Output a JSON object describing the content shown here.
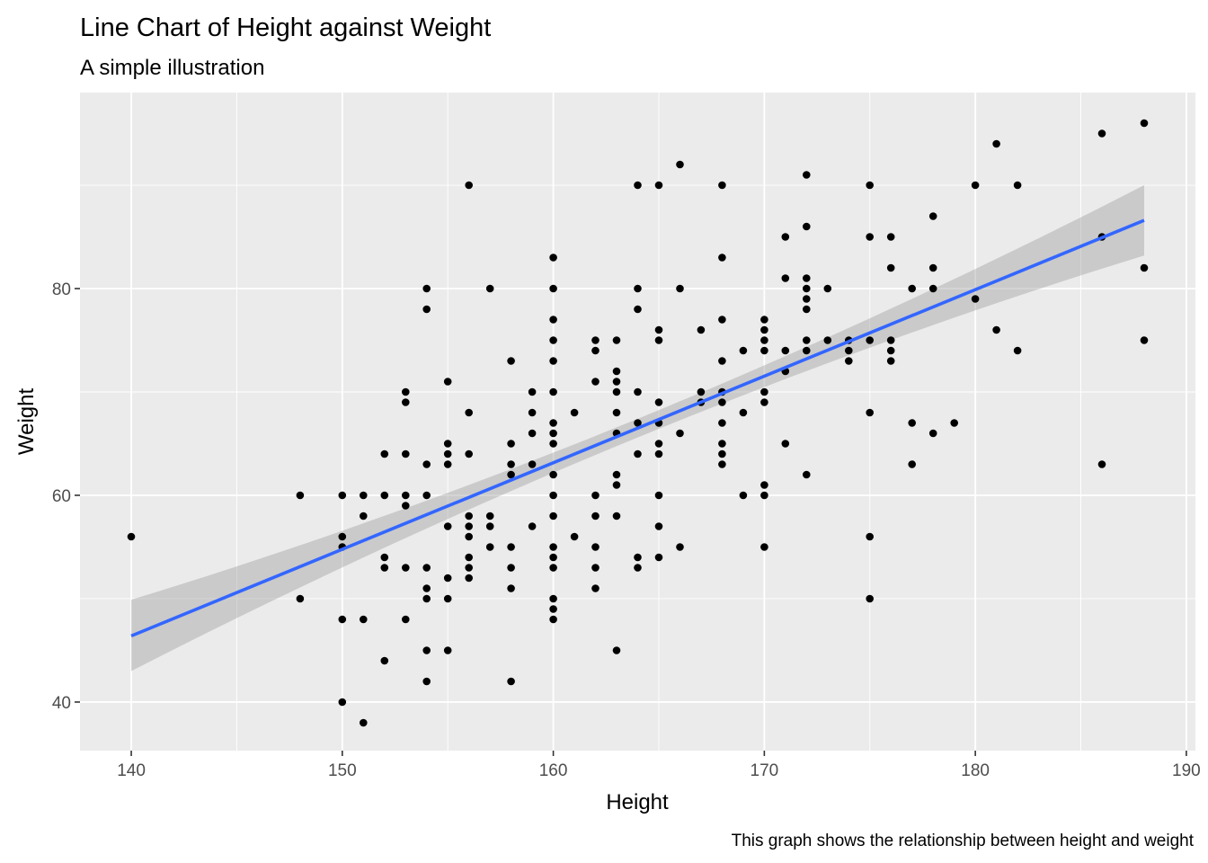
{
  "chart_data": {
    "type": "scatter",
    "title": "Line Chart of Height against Weight",
    "subtitle": "A simple illustration",
    "caption": "This graph shows the relationship between height and weight",
    "xlabel": "Height",
    "ylabel": "Weight",
    "xlim": [
      137.57,
      190.43
    ],
    "ylim": [
      35.3,
      98.96
    ],
    "x_ticks": [
      140,
      150,
      160,
      170,
      180,
      190
    ],
    "y_ticks": [
      40,
      60,
      80
    ],
    "x_tick_labels": [
      "140",
      "150",
      "160",
      "170",
      "180",
      "190"
    ],
    "y_tick_labels": [
      "40",
      "60",
      "80"
    ],
    "grid": true,
    "legend": "none",
    "points": [
      [
        140,
        56
      ],
      [
        148,
        60
      ],
      [
        148,
        50
      ],
      [
        150,
        60
      ],
      [
        150,
        56
      ],
      [
        150,
        55
      ],
      [
        150,
        48
      ],
      [
        150,
        40
      ],
      [
        151,
        60
      ],
      [
        151,
        58
      ],
      [
        151,
        48
      ],
      [
        151,
        38
      ],
      [
        152,
        64
      ],
      [
        152,
        60
      ],
      [
        152,
        54
      ],
      [
        152,
        53
      ],
      [
        152,
        44
      ],
      [
        153,
        70
      ],
      [
        153,
        69
      ],
      [
        153,
        64
      ],
      [
        153,
        60
      ],
      [
        153,
        59
      ],
      [
        153,
        53
      ],
      [
        153,
        48
      ],
      [
        154,
        80
      ],
      [
        154,
        78
      ],
      [
        154,
        63
      ],
      [
        154,
        60
      ],
      [
        154,
        53
      ],
      [
        154,
        51
      ],
      [
        154,
        50
      ],
      [
        154,
        45
      ],
      [
        154,
        42
      ],
      [
        155,
        71
      ],
      [
        155,
        65
      ],
      [
        155,
        64
      ],
      [
        155,
        63
      ],
      [
        155,
        57
      ],
      [
        155,
        52
      ],
      [
        155,
        50
      ],
      [
        155,
        45
      ],
      [
        156,
        90
      ],
      [
        156,
        68
      ],
      [
        156,
        64
      ],
      [
        156,
        58
      ],
      [
        156,
        57
      ],
      [
        156,
        56
      ],
      [
        156,
        54
      ],
      [
        156,
        53
      ],
      [
        156,
        52
      ],
      [
        157,
        80
      ],
      [
        157,
        58
      ],
      [
        157,
        57
      ],
      [
        157,
        55
      ],
      [
        158,
        73
      ],
      [
        158,
        65
      ],
      [
        158,
        63
      ],
      [
        158,
        62
      ],
      [
        158,
        55
      ],
      [
        158,
        53
      ],
      [
        158,
        51
      ],
      [
        158,
        42
      ],
      [
        159,
        70
      ],
      [
        159,
        68
      ],
      [
        159,
        66
      ],
      [
        159,
        63
      ],
      [
        159,
        57
      ],
      [
        160,
        83
      ],
      [
        160,
        80
      ],
      [
        160,
        77
      ],
      [
        160,
        75
      ],
      [
        160,
        73
      ],
      [
        160,
        70
      ],
      [
        160,
        67
      ],
      [
        160,
        66
      ],
      [
        160,
        65
      ],
      [
        160,
        62
      ],
      [
        160,
        60
      ],
      [
        160,
        58
      ],
      [
        160,
        55
      ],
      [
        160,
        54
      ],
      [
        160,
        53
      ],
      [
        160,
        50
      ],
      [
        160,
        49
      ],
      [
        160,
        48
      ],
      [
        161,
        68
      ],
      [
        161,
        56
      ],
      [
        162,
        75
      ],
      [
        162,
        74
      ],
      [
        162,
        71
      ],
      [
        162,
        60
      ],
      [
        162,
        58
      ],
      [
        162,
        55
      ],
      [
        162,
        53
      ],
      [
        162,
        51
      ],
      [
        163,
        75
      ],
      [
        163,
        72
      ],
      [
        163,
        71
      ],
      [
        163,
        70
      ],
      [
        163,
        68
      ],
      [
        163,
        66
      ],
      [
        163,
        62
      ],
      [
        163,
        61
      ],
      [
        163,
        58
      ],
      [
        163,
        45
      ],
      [
        164,
        90
      ],
      [
        164,
        80
      ],
      [
        164,
        78
      ],
      [
        164,
        70
      ],
      [
        164,
        67
      ],
      [
        164,
        64
      ],
      [
        164,
        54
      ],
      [
        164,
        53
      ],
      [
        165,
        90
      ],
      [
        165,
        76
      ],
      [
        165,
        75
      ],
      [
        165,
        69
      ],
      [
        165,
        67
      ],
      [
        165,
        65
      ],
      [
        165,
        64
      ],
      [
        165,
        60
      ],
      [
        165,
        57
      ],
      [
        165,
        54
      ],
      [
        166,
        92
      ],
      [
        166,
        80
      ],
      [
        166,
        66
      ],
      [
        166,
        55
      ],
      [
        167,
        76
      ],
      [
        167,
        70
      ],
      [
        167,
        69
      ],
      [
        168,
        90
      ],
      [
        168,
        83
      ],
      [
        168,
        77
      ],
      [
        168,
        73
      ],
      [
        168,
        70
      ],
      [
        168,
        69
      ],
      [
        168,
        67
      ],
      [
        168,
        65
      ],
      [
        168,
        64
      ],
      [
        168,
        63
      ],
      [
        169,
        74
      ],
      [
        169,
        68
      ],
      [
        169,
        60
      ],
      [
        170,
        77
      ],
      [
        170,
        76
      ],
      [
        170,
        75
      ],
      [
        170,
        74
      ],
      [
        170,
        70
      ],
      [
        170,
        69
      ],
      [
        170,
        61
      ],
      [
        170,
        60
      ],
      [
        170,
        55
      ],
      [
        171,
        85
      ],
      [
        171,
        81
      ],
      [
        171,
        74
      ],
      [
        171,
        72
      ],
      [
        171,
        65
      ],
      [
        172,
        91
      ],
      [
        172,
        86
      ],
      [
        172,
        81
      ],
      [
        172,
        80
      ],
      [
        172,
        79
      ],
      [
        172,
        78
      ],
      [
        172,
        75
      ],
      [
        172,
        74
      ],
      [
        172,
        62
      ],
      [
        173,
        80
      ],
      [
        173,
        75
      ],
      [
        174,
        75
      ],
      [
        174,
        74
      ],
      [
        174,
        73
      ],
      [
        175,
        90
      ],
      [
        175,
        85
      ],
      [
        175,
        75
      ],
      [
        175,
        68
      ],
      [
        175,
        56
      ],
      [
        175,
        50
      ],
      [
        176,
        85
      ],
      [
        176,
        82
      ],
      [
        176,
        75
      ],
      [
        176,
        74
      ],
      [
        176,
        73
      ],
      [
        177,
        80
      ],
      [
        177,
        67
      ],
      [
        177,
        63
      ],
      [
        178,
        87
      ],
      [
        178,
        82
      ],
      [
        178,
        80
      ],
      [
        178,
        66
      ],
      [
        179,
        67
      ],
      [
        180,
        90
      ],
      [
        180,
        79
      ],
      [
        181,
        94
      ],
      [
        181,
        76
      ],
      [
        182,
        90
      ],
      [
        182,
        74
      ],
      [
        186,
        95
      ],
      [
        186,
        85
      ],
      [
        186,
        63
      ],
      [
        188,
        96
      ],
      [
        188,
        82
      ],
      [
        188,
        75
      ]
    ],
    "smooth": {
      "method": "linear fit with confidence band",
      "x": [
        140,
        188
      ],
      "y": [
        46.4,
        86.6
      ],
      "band_lower": [
        43.0,
        83.2
      ],
      "band_upper": [
        49.9,
        90.0
      ],
      "band_mid_x": 164,
      "band_mid_lower": [
        65.6
      ],
      "band_mid_upper": [
        67.4
      ]
    },
    "colors": {
      "panel_background": "#ebebeb",
      "grid_major": "#ffffff",
      "point": "#000000",
      "line": "#3366ff",
      "band": "#999999"
    }
  }
}
